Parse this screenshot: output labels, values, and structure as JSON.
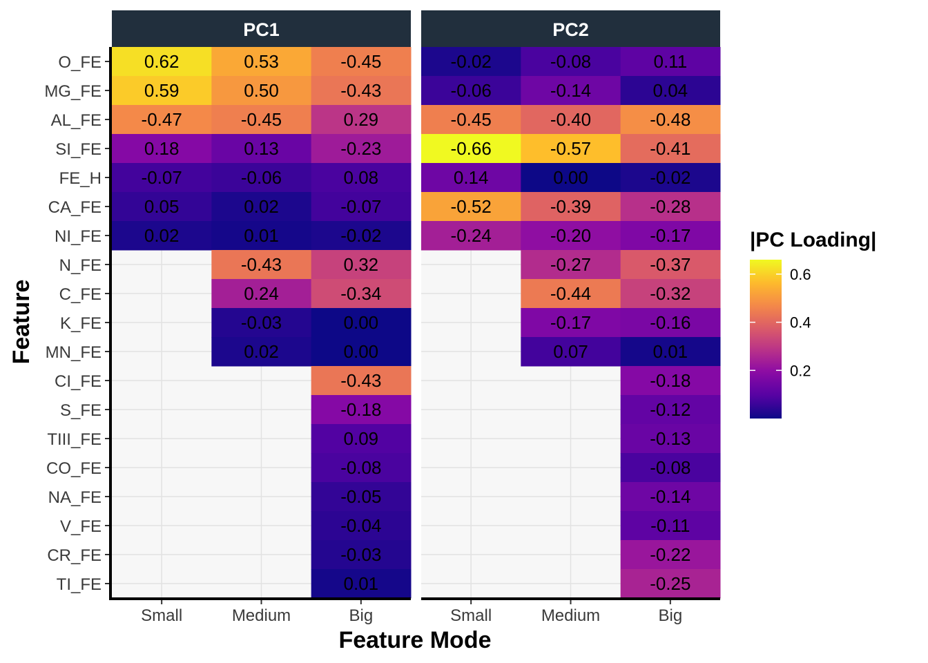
{
  "chart_data": {
    "type": "heatmap",
    "xlabel": "Feature Mode",
    "ylabel": "Feature",
    "x_categories": [
      "Small",
      "Medium",
      "Big"
    ],
    "y_categories": [
      "O_FE",
      "MG_FE",
      "AL_FE",
      "SI_FE",
      "FE_H",
      "CA_FE",
      "NI_FE",
      "N_FE",
      "C_FE",
      "K_FE",
      "MN_FE",
      "CI_FE",
      "S_FE",
      "TIII_FE",
      "CO_FE",
      "NA_FE",
      "V_FE",
      "CR_FE",
      "TI_FE"
    ],
    "legend": {
      "title": "|PC Loading|",
      "ticks": [
        0.2,
        0.4,
        0.6
      ],
      "colormap": "plasma",
      "range": [
        0,
        0.66
      ],
      "placement": "right"
    },
    "grid": true,
    "panels": [
      {
        "title": "PC1",
        "values": {
          "Small": [
            0.62,
            0.59,
            -0.47,
            0.18,
            -0.07,
            0.05,
            0.02,
            null,
            null,
            null,
            null,
            null,
            null,
            null,
            null,
            null,
            null,
            null,
            null
          ],
          "Medium": [
            0.53,
            0.5,
            -0.45,
            0.13,
            -0.06,
            0.02,
            0.01,
            -0.43,
            0.24,
            -0.03,
            0.02,
            null,
            null,
            null,
            null,
            null,
            null,
            null,
            null
          ],
          "Big": [
            -0.45,
            -0.43,
            0.29,
            -0.23,
            0.08,
            -0.07,
            -0.02,
            0.32,
            -0.34,
            -0.0,
            -0.0,
            -0.43,
            -0.18,
            0.09,
            -0.08,
            -0.05,
            -0.04,
            -0.03,
            0.01
          ]
        }
      },
      {
        "title": "PC2",
        "values": {
          "Small": [
            -0.02,
            -0.06,
            -0.45,
            -0.66,
            0.14,
            -0.52,
            -0.24,
            null,
            null,
            null,
            null,
            null,
            null,
            null,
            null,
            null,
            null,
            null,
            null
          ],
          "Medium": [
            -0.08,
            -0.14,
            -0.4,
            -0.57,
            -0.0,
            -0.39,
            -0.2,
            -0.27,
            -0.44,
            -0.17,
            0.07,
            null,
            null,
            null,
            null,
            null,
            null,
            null,
            null
          ],
          "Big": [
            0.11,
            0.04,
            -0.48,
            -0.41,
            -0.02,
            -0.28,
            -0.17,
            -0.37,
            -0.32,
            -0.16,
            0.01,
            -0.18,
            -0.12,
            -0.13,
            -0.08,
            -0.14,
            -0.11,
            -0.22,
            -0.25
          ]
        }
      }
    ]
  }
}
